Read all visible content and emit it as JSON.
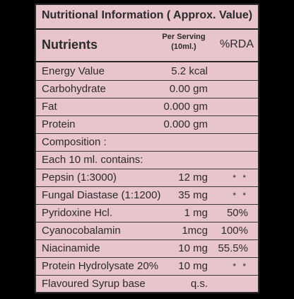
{
  "title": "Nutritional Information ( Approx. Value)",
  "headers": {
    "nutrients": "Nutrients",
    "per_serving_line1": "Per Serving",
    "per_serving_line2": "(10ml.)",
    "rda": "%RDA"
  },
  "rows": [
    {
      "name": "Energy Value",
      "amount": "5.2 kcal",
      "rda": ""
    },
    {
      "name": "Carbohydrate",
      "amount": "0.00  gm",
      "rda": ""
    },
    {
      "name": "Fat",
      "amount": "0.000 gm",
      "rda": ""
    },
    {
      "name": "Protein",
      "amount": "0.000 gm",
      "rda": ""
    },
    {
      "name": "Composition :",
      "amount": "",
      "rda": ""
    },
    {
      "name": "Each 10 ml. contains:",
      "amount": "",
      "rda": ""
    },
    {
      "name": "Pepsin (1:3000)",
      "amount": "12 mg",
      "rda": "* *"
    },
    {
      "name": "Fungal Diastase (1:1200)",
      "amount": "35 mg",
      "rda": "* *"
    },
    {
      "name": "Pyridoxine Hcl.",
      "amount": "1 mg",
      "rda": "50%"
    },
    {
      "name": "Cyanocobalamin",
      "amount": "1mcg",
      "rda": "100%"
    },
    {
      "name": "Niacinamide",
      "amount": "10 mg",
      "rda": "55.5%"
    },
    {
      "name": "Protein Hydrolysate 20%",
      "amount": "10 mg",
      "rda": "* *"
    },
    {
      "name": "Flavoured Syrup base",
      "amount": "q.s.",
      "rda": ""
    }
  ]
}
